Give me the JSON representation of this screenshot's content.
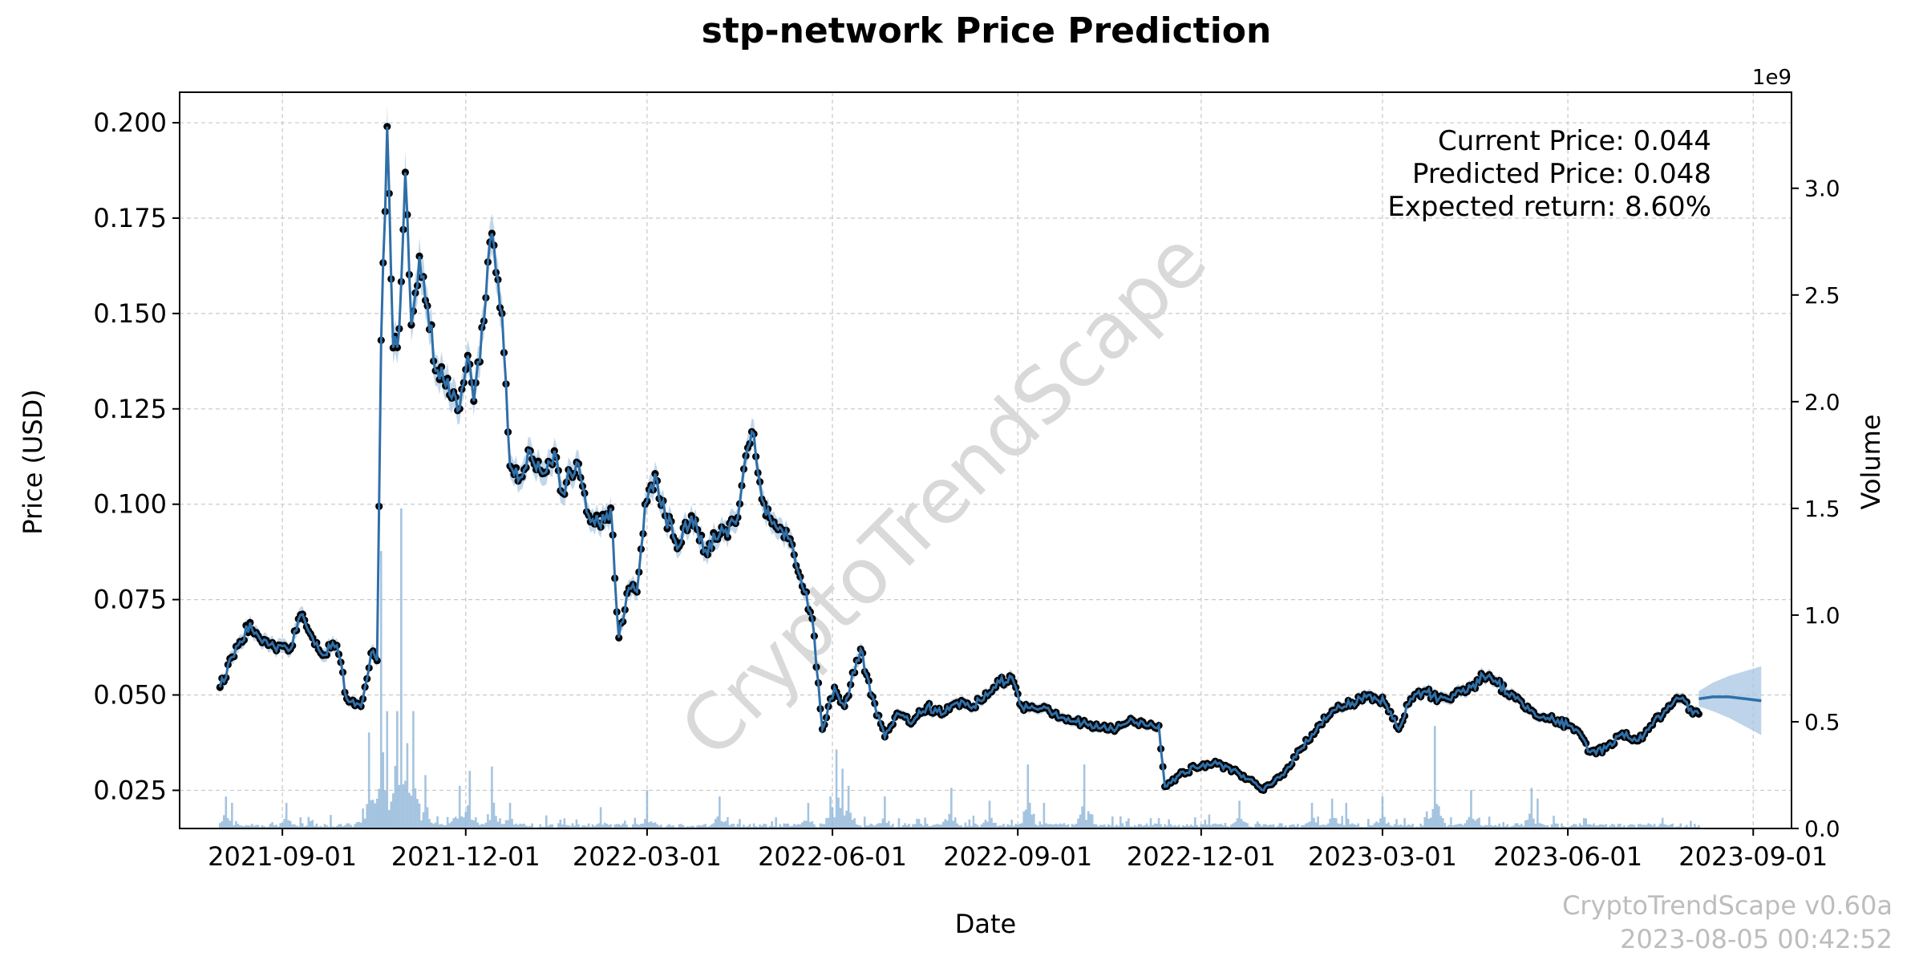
{
  "chart_data": {
    "type": "line",
    "title": "stp-network Price Prediction",
    "xlabel": "Date",
    "ylabel": "Price (USD)",
    "y2label": "Volume",
    "y2_exponent_label": "1e9",
    "x_ticks": [
      "2021-09-01",
      "2021-12-01",
      "2022-03-01",
      "2022-06-01",
      "2022-09-01",
      "2022-12-01",
      "2023-03-01",
      "2023-06-01",
      "2023-09-01"
    ],
    "y_ticks": [
      0.025,
      0.05,
      0.075,
      0.1,
      0.125,
      0.15,
      0.175,
      0.2
    ],
    "y_tick_labels": [
      "0.025",
      "0.050",
      "0.075",
      "0.100",
      "0.125",
      "0.150",
      "0.175",
      "0.200"
    ],
    "y2_ticks": [
      0,
      0.5,
      1.0,
      1.5,
      2.0,
      2.5,
      3.0
    ],
    "y2_tick_labels": [
      "0.0",
      "0.5",
      "1.0",
      "1.5",
      "2.0",
      "2.5",
      "3.0"
    ],
    "xlim": [
      "2021-07-12",
      "2023-09-20"
    ],
    "ylim": [
      0.015,
      0.208
    ],
    "y2lim": [
      0,
      3.45
    ],
    "grid": true,
    "colors": {
      "price_line": "#2f6fa8",
      "price_band": "#a7c6e3",
      "points": "#000000",
      "volume": "#8fb5d8",
      "forecast": "#2f6fa8",
      "forecast_band": "#a7c6e3"
    },
    "series": [
      {
        "name": "",
        "key": "price",
        "anchors": [
          [
            "2021-08-01",
            0.052
          ],
          [
            "2021-08-10",
            0.063
          ],
          [
            "2021-08-16",
            0.069
          ],
          [
            "2021-08-25",
            0.063
          ],
          [
            "2021-09-05",
            0.062
          ],
          [
            "2021-09-10",
            0.071
          ],
          [
            "2021-09-15",
            0.066
          ],
          [
            "2021-09-20",
            0.061
          ],
          [
            "2021-09-28",
            0.063
          ],
          [
            "2021-10-03",
            0.049
          ],
          [
            "2021-10-10",
            0.047
          ],
          [
            "2021-10-15",
            0.061
          ],
          [
            "2021-10-18",
            0.059
          ],
          [
            "2021-10-20",
            0.143
          ],
          [
            "2021-10-23",
            0.199
          ],
          [
            "2021-10-26",
            0.141
          ],
          [
            "2021-10-29",
            0.146
          ],
          [
            "2021-11-01",
            0.187
          ],
          [
            "2021-11-04",
            0.147
          ],
          [
            "2021-11-08",
            0.165
          ],
          [
            "2021-11-12",
            0.152
          ],
          [
            "2021-11-16",
            0.135
          ],
          [
            "2021-11-22",
            0.133
          ],
          [
            "2021-11-28",
            0.125
          ],
          [
            "2021-12-02",
            0.139
          ],
          [
            "2021-12-05",
            0.127
          ],
          [
            "2021-12-10",
            0.148
          ],
          [
            "2021-12-14",
            0.171
          ],
          [
            "2021-12-19",
            0.15
          ],
          [
            "2021-12-23",
            0.11
          ],
          [
            "2021-12-28",
            0.107
          ],
          [
            "2022-01-02",
            0.114
          ],
          [
            "2022-01-08",
            0.108
          ],
          [
            "2022-01-14",
            0.114
          ],
          [
            "2022-01-18",
            0.103
          ],
          [
            "2022-01-25",
            0.111
          ],
          [
            "2022-01-30",
            0.098
          ],
          [
            "2022-02-06",
            0.094
          ],
          [
            "2022-02-11",
            0.099
          ],
          [
            "2022-02-15",
            0.065
          ],
          [
            "2022-02-20",
            0.078
          ],
          [
            "2022-02-24",
            0.077
          ],
          [
            "2022-02-28",
            0.1
          ],
          [
            "2022-03-05",
            0.108
          ],
          [
            "2022-03-10",
            0.097
          ],
          [
            "2022-03-17",
            0.089
          ],
          [
            "2022-03-23",
            0.097
          ],
          [
            "2022-03-30",
            0.088
          ],
          [
            "2022-04-06",
            0.092
          ],
          [
            "2022-04-14",
            0.095
          ],
          [
            "2022-04-22",
            0.119
          ],
          [
            "2022-04-29",
            0.097
          ],
          [
            "2022-05-04",
            0.094
          ],
          [
            "2022-05-10",
            0.091
          ],
          [
            "2022-05-16",
            0.081
          ],
          [
            "2022-05-22",
            0.07
          ],
          [
            "2022-05-27",
            0.041
          ],
          [
            "2022-06-02",
            0.052
          ],
          [
            "2022-06-07",
            0.047
          ],
          [
            "2022-06-15",
            0.062
          ],
          [
            "2022-06-20",
            0.05
          ],
          [
            "2022-06-27",
            0.039
          ],
          [
            "2022-07-04",
            0.045
          ],
          [
            "2022-07-11",
            0.043
          ],
          [
            "2022-07-18",
            0.047
          ],
          [
            "2022-07-26",
            0.045
          ],
          [
            "2022-08-02",
            0.048
          ],
          [
            "2022-08-10",
            0.047
          ],
          [
            "2022-08-20",
            0.052
          ],
          [
            "2022-08-28",
            0.055
          ],
          [
            "2022-09-03",
            0.047
          ],
          [
            "2022-09-14",
            0.047
          ],
          [
            "2022-09-24",
            0.044
          ],
          [
            "2022-10-06",
            0.042
          ],
          [
            "2022-10-18",
            0.041
          ],
          [
            "2022-10-26",
            0.043
          ],
          [
            "2022-11-10",
            0.042
          ],
          [
            "2022-11-13",
            0.026
          ],
          [
            "2022-11-20",
            0.029
          ],
          [
            "2022-11-28",
            0.031
          ],
          [
            "2022-12-07",
            0.032
          ],
          [
            "2022-12-15",
            0.031
          ],
          [
            "2022-12-24",
            0.028
          ],
          [
            "2023-01-01",
            0.025
          ],
          [
            "2023-01-10",
            0.029
          ],
          [
            "2023-01-20",
            0.036
          ],
          [
            "2023-01-28",
            0.042
          ],
          [
            "2023-02-05",
            0.046
          ],
          [
            "2023-02-14",
            0.048
          ],
          [
            "2023-02-22",
            0.05
          ],
          [
            "2023-03-02",
            0.048
          ],
          [
            "2023-03-09",
            0.041
          ],
          [
            "2023-03-15",
            0.049
          ],
          [
            "2023-03-22",
            0.051
          ],
          [
            "2023-03-29",
            0.049
          ],
          [
            "2023-04-06",
            0.05
          ],
          [
            "2023-04-14",
            0.052
          ],
          [
            "2023-04-20",
            0.055
          ],
          [
            "2023-04-27",
            0.053
          ],
          [
            "2023-05-06",
            0.049
          ],
          [
            "2023-05-14",
            0.046
          ],
          [
            "2023-05-22",
            0.044
          ],
          [
            "2023-06-01",
            0.042
          ],
          [
            "2023-06-08",
            0.039
          ],
          [
            "2023-06-12",
            0.035
          ],
          [
            "2023-06-20",
            0.036
          ],
          [
            "2023-06-28",
            0.04
          ],
          [
            "2023-07-06",
            0.038
          ],
          [
            "2023-07-12",
            0.042
          ],
          [
            "2023-07-20",
            0.046
          ],
          [
            "2023-07-27",
            0.049
          ],
          [
            "2023-08-02",
            0.045
          ],
          [
            "2023-08-05",
            0.045
          ]
        ]
      },
      {
        "name": "",
        "key": "forecast",
        "points": [
          [
            "2023-08-05",
            0.049
          ],
          [
            "2023-08-12",
            0.0495
          ],
          [
            "2023-08-20",
            0.0495
          ],
          [
            "2023-08-28",
            0.049
          ],
          [
            "2023-09-05",
            0.0485
          ]
        ],
        "band_halfwidth_start": 0.002,
        "band_halfwidth_end": 0.009
      }
    ],
    "volume_spikes_1e9": [
      [
        "2021-08-04",
        0.15
      ],
      [
        "2021-08-07",
        0.12
      ],
      [
        "2021-09-03",
        0.12
      ],
      [
        "2021-10-14",
        0.45
      ],
      [
        "2021-10-20",
        1.3
      ],
      [
        "2021-10-23",
        0.55
      ],
      [
        "2021-10-28",
        0.55
      ],
      [
        "2021-10-30",
        1.5
      ],
      [
        "2021-11-02",
        0.4
      ],
      [
        "2021-11-05",
        0.55
      ],
      [
        "2021-11-11",
        0.25
      ],
      [
        "2021-11-28",
        0.2
      ],
      [
        "2021-12-03",
        0.27
      ],
      [
        "2021-12-14",
        0.29
      ],
      [
        "2021-12-23",
        0.12
      ],
      [
        "2022-02-06",
        0.1
      ],
      [
        "2022-03-01",
        0.18
      ],
      [
        "2022-04-06",
        0.15
      ],
      [
        "2022-05-20",
        0.12
      ],
      [
        "2022-05-31",
        0.15
      ],
      [
        "2022-06-03",
        0.37
      ],
      [
        "2022-06-06",
        0.28
      ],
      [
        "2022-06-09",
        0.2
      ],
      [
        "2022-06-27",
        0.15
      ],
      [
        "2022-07-30",
        0.19
      ],
      [
        "2022-08-18",
        0.13
      ],
      [
        "2022-09-06",
        0.3
      ],
      [
        "2022-09-14",
        0.12
      ],
      [
        "2022-10-04",
        0.3
      ],
      [
        "2022-12-20",
        0.13
      ],
      [
        "2023-01-25",
        0.12
      ],
      [
        "2023-02-04",
        0.14
      ],
      [
        "2023-02-11",
        0.12
      ],
      [
        "2023-03-01",
        0.15
      ],
      [
        "2023-03-27",
        0.48
      ],
      [
        "2023-04-14",
        0.18
      ],
      [
        "2023-05-14",
        0.19
      ],
      [
        "2023-05-17",
        0.14
      ],
      [
        "2023-07-18",
        0.05
      ]
    ],
    "annotations": [
      "Current Price: 0.044",
      "Predicted Price: 0.048",
      "Expected return: 8.60%"
    ],
    "watermark": "CryptoTrendScape",
    "footer": [
      "CryptoTrendScape v0.60a",
      "2023-08-05 00:42:52"
    ]
  }
}
